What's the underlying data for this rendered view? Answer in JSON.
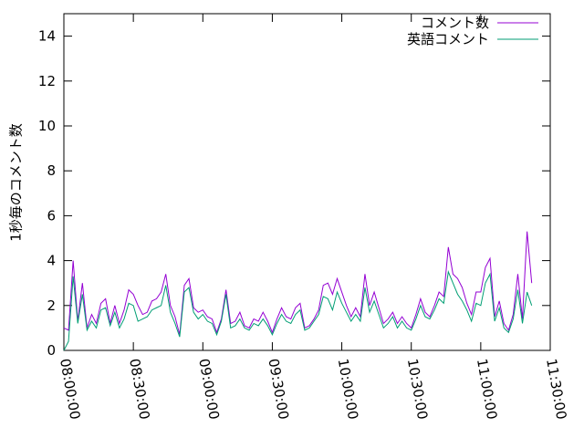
{
  "chart_data": {
    "type": "line",
    "y_label": "1秒毎のコメント数",
    "legend": "top-right",
    "x": [
      "08:00:00",
      "08:02:00",
      "08:04:00",
      "08:06:00",
      "08:08:00",
      "08:10:00",
      "08:12:00",
      "08:14:00",
      "08:16:00",
      "08:18:00",
      "08:20:00",
      "08:22:00",
      "08:24:00",
      "08:26:00",
      "08:28:00",
      "08:30:00",
      "08:32:00",
      "08:34:00",
      "08:36:00",
      "08:38:00",
      "08:40:00",
      "08:42:00",
      "08:44:00",
      "08:46:00",
      "08:48:00",
      "08:50:00",
      "08:52:00",
      "08:54:00",
      "08:56:00",
      "08:58:00",
      "09:00:00",
      "09:02:00",
      "09:04:00",
      "09:06:00",
      "09:08:00",
      "09:10:00",
      "09:12:00",
      "09:14:00",
      "09:16:00",
      "09:18:00",
      "09:20:00",
      "09:22:00",
      "09:24:00",
      "09:26:00",
      "09:28:00",
      "09:30:00",
      "09:32:00",
      "09:34:00",
      "09:36:00",
      "09:38:00",
      "09:40:00",
      "09:42:00",
      "09:44:00",
      "09:46:00",
      "09:48:00",
      "09:50:00",
      "09:52:00",
      "09:54:00",
      "09:56:00",
      "09:58:00",
      "10:00:00",
      "10:02:00",
      "10:04:00",
      "10:06:00",
      "10:08:00",
      "10:10:00",
      "10:12:00",
      "10:14:00",
      "10:16:00",
      "10:18:00",
      "10:20:00",
      "10:22:00",
      "10:24:00",
      "10:26:00",
      "10:28:00",
      "10:30:00",
      "10:32:00",
      "10:34:00",
      "10:36:00",
      "10:38:00",
      "10:40:00",
      "10:42:00",
      "10:44:00",
      "10:46:00",
      "10:48:00",
      "10:50:00",
      "10:52:00",
      "10:54:00",
      "10:56:00",
      "10:58:00",
      "11:00:00",
      "11:02:00",
      "11:04:00",
      "11:06:00",
      "11:08:00",
      "11:10:00",
      "11:12:00",
      "11:14:00",
      "11:16:00",
      "11:18:00",
      "11:20:00",
      "11:22:00"
    ],
    "series": [
      {
        "name": "コメント数",
        "color": "#9400d3",
        "values": [
          1.0,
          0.9,
          4.0,
          1.3,
          3.0,
          1.0,
          1.6,
          1.2,
          2.1,
          2.3,
          1.2,
          2.0,
          1.2,
          1.8,
          2.7,
          2.5,
          2.0,
          1.6,
          1.7,
          2.2,
          2.3,
          2.6,
          3.4,
          2.0,
          1.5,
          0.7,
          2.9,
          3.2,
          1.9,
          1.7,
          1.8,
          1.5,
          1.4,
          0.8,
          1.4,
          2.7,
          1.2,
          1.3,
          1.7,
          1.1,
          1.0,
          1.4,
          1.3,
          1.7,
          1.3,
          0.8,
          1.4,
          1.9,
          1.5,
          1.4,
          1.9,
          2.1,
          1.0,
          1.1,
          1.4,
          1.8,
          2.9,
          3.0,
          2.5,
          3.2,
          2.6,
          2.0,
          1.5,
          1.9,
          1.5,
          3.4,
          2.0,
          2.6,
          1.9,
          1.2,
          1.4,
          1.7,
          1.2,
          1.5,
          1.2,
          1.0,
          1.6,
          2.3,
          1.7,
          1.5,
          2.0,
          2.6,
          2.4,
          4.6,
          3.4,
          3.2,
          2.8,
          2.1,
          1.6,
          2.6,
          2.6,
          3.7,
          4.1,
          1.5,
          2.2,
          1.2,
          0.9,
          1.6,
          3.4,
          1.4,
          5.3,
          3.0
        ]
      },
      {
        "name": "英語コメント",
        "color": "#009e73",
        "values": [
          0.0,
          0.4,
          3.3,
          1.2,
          2.5,
          0.9,
          1.3,
          1.0,
          1.8,
          1.9,
          1.1,
          1.7,
          1.0,
          1.4,
          2.1,
          2.0,
          1.3,
          1.4,
          1.5,
          1.8,
          1.9,
          2.0,
          2.9,
          1.7,
          1.2,
          0.6,
          2.6,
          2.8,
          1.7,
          1.4,
          1.6,
          1.3,
          1.2,
          0.7,
          1.3,
          2.5,
          1.0,
          1.1,
          1.4,
          1.0,
          0.9,
          1.2,
          1.1,
          1.4,
          1.1,
          0.7,
          1.2,
          1.6,
          1.3,
          1.2,
          1.6,
          1.8,
          0.9,
          1.0,
          1.3,
          1.6,
          2.4,
          2.3,
          1.8,
          2.6,
          2.1,
          1.7,
          1.3,
          1.6,
          1.3,
          2.8,
          1.7,
          2.2,
          1.6,
          1.0,
          1.2,
          1.5,
          1.0,
          1.3,
          1.0,
          0.9,
          1.4,
          2.0,
          1.5,
          1.4,
          1.8,
          2.3,
          2.1,
          3.5,
          3.0,
          2.5,
          2.2,
          1.8,
          1.3,
          2.1,
          2.0,
          3.0,
          3.4,
          1.3,
          1.9,
          1.0,
          0.8,
          1.4,
          2.7,
          1.2,
          2.6,
          2.0
        ]
      }
    ],
    "xlim": [
      "08:00:00",
      "11:30:00"
    ],
    "xticks": [
      "08:00:00",
      "08:30:00",
      "09:00:00",
      "09:30:00",
      "10:00:00",
      "10:30:00",
      "11:00:00",
      "11:30:00"
    ],
    "ylim": [
      0,
      15
    ],
    "yticks": [
      0,
      2,
      4,
      6,
      8,
      10,
      12,
      14
    ]
  }
}
